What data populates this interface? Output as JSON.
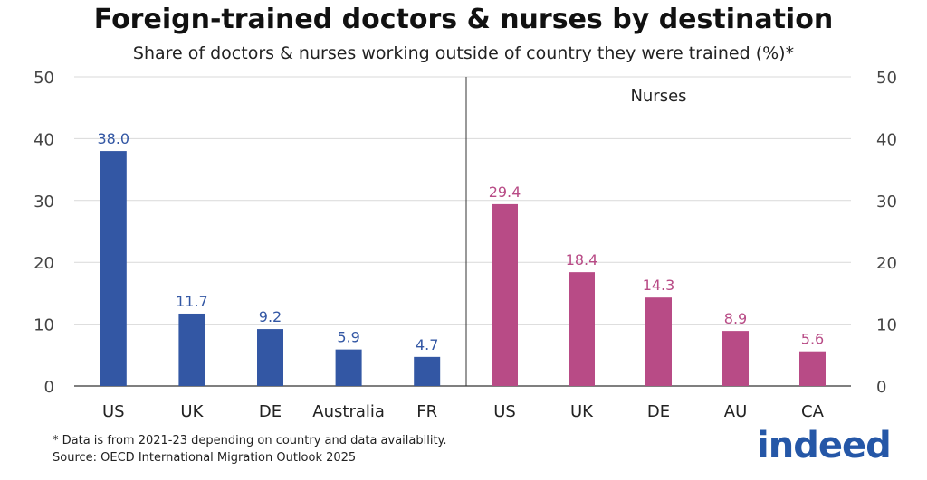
{
  "title": "Foreign-trained doctors & nurses by destination",
  "subtitle": "Share of doctors & nurses working outside of country they were trained (%)*",
  "footnote": "* Data is from 2021-23 depending on country and data availability.",
  "source": "Source: OECD International Migration Outlook 2025",
  "logo_text": "indeed",
  "colors": {
    "doctors": "#3357a4",
    "nurses": "#b84b86",
    "axis": "#444444",
    "grid": "#d9d9d9"
  },
  "chart_data": {
    "type": "bar",
    "ylim": [
      0,
      50
    ],
    "yticks": [
      0,
      10,
      20,
      30,
      40,
      50
    ],
    "grid": true,
    "panels": [
      {
        "label": "",
        "color": "#3357a4",
        "categories": [
          "US",
          "UK",
          "DE",
          "Australia",
          "FR"
        ],
        "values": [
          38.0,
          11.7,
          9.2,
          5.9,
          4.7
        ],
        "data_labels": [
          "38.0",
          "11.7",
          "9.2",
          "5.9",
          "4.7"
        ]
      },
      {
        "label": "Nurses",
        "color": "#b84b86",
        "categories": [
          "US",
          "UK",
          "DE",
          "AU",
          "CA"
        ],
        "values": [
          29.4,
          18.4,
          14.3,
          8.9,
          5.6
        ],
        "data_labels": [
          "29.4",
          "18.4",
          "14.3",
          "8.9",
          "5.6"
        ]
      }
    ]
  }
}
